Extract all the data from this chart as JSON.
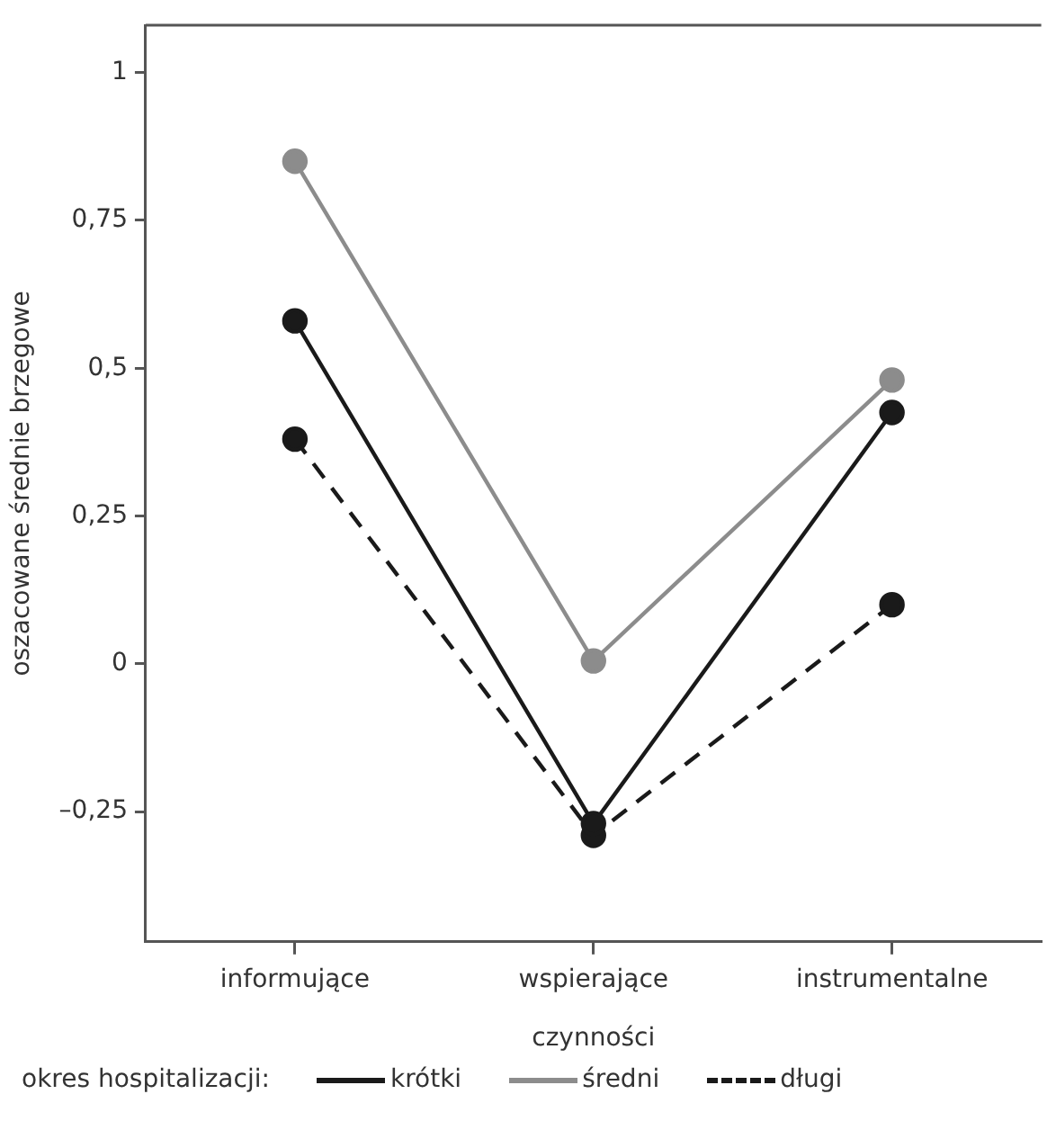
{
  "chart_data": {
    "type": "line",
    "xlabel": "czynności",
    "ylabel": "oszacowane średnie brzegowe",
    "legend_title": "okres hospitalizacji:",
    "categories": [
      "informujące",
      "wspierające",
      "instrumentalne"
    ],
    "series": [
      {
        "name": "krótki",
        "color": "#1a1a1a",
        "values": [
          0.58,
          -0.27,
          0.425
        ]
      },
      {
        "name": "średni",
        "color": "#8c8c8c",
        "values": [
          0.85,
          0.005,
          0.48
        ]
      },
      {
        "name": "długi",
        "color": "#1a1a1a",
        "values": [
          0.38,
          -0.29,
          0.1
        ],
        "line_style": "dashed"
      }
    ],
    "ylim": [
      -0.47,
      1.08
    ],
    "yticks": [
      {
        "value": -0.25,
        "label": "–0,25"
      },
      {
        "value": 0,
        "label": "0"
      },
      {
        "value": 0.25,
        "label": "0,25"
      },
      {
        "value": 0.5,
        "label": "0,5"
      },
      {
        "value": 0.75,
        "label": "0,75"
      },
      {
        "value": 1,
        "label": "1"
      }
    ],
    "grid": false,
    "legend": "bottom",
    "marker": "circle",
    "line_style": "solid"
  }
}
